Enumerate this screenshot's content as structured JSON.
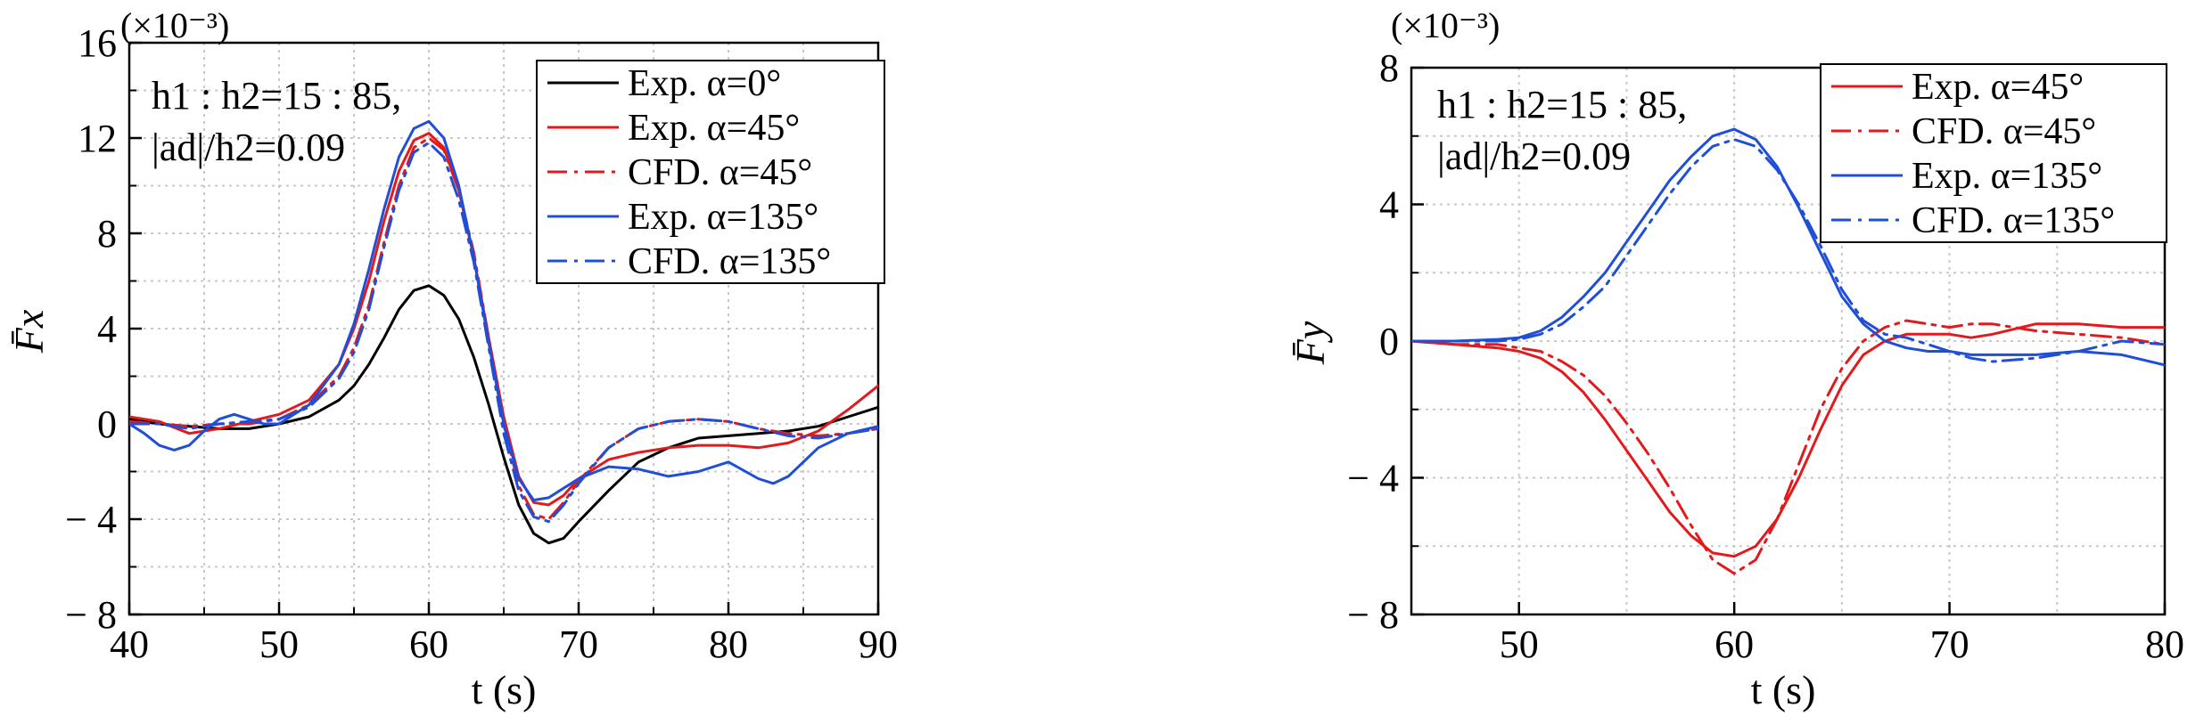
{
  "chart_data": [
    {
      "type": "line",
      "scale_label": "(×10⁻³)",
      "ylabel": "F̄x",
      "xlabel": "t (s)",
      "xlim": [
        40,
        90
      ],
      "ylim": [
        -8,
        16
      ],
      "xticks": [
        40,
        50,
        60,
        70,
        80,
        90
      ],
      "yticks": [
        -8,
        -4,
        0,
        4,
        8,
        12,
        16
      ],
      "ytick_labels": [
        "− 8",
        "− 4",
        "0",
        "4",
        "8",
        "12",
        "16"
      ],
      "grid": true,
      "legend_position": "top-right",
      "annotation": [
        "h1 : h2=15 : 85,",
        "|ad|/h2=0.09"
      ],
      "series": [
        {
          "name": "Exp. α=0°",
          "color": "#000000",
          "dash": "solid",
          "x": [
            40,
            42,
            44,
            46,
            48,
            50,
            52,
            54,
            55,
            56,
            57,
            58,
            59,
            60,
            61,
            62,
            63,
            64,
            65,
            66,
            67,
            68,
            69,
            70,
            72,
            74,
            76,
            78,
            80,
            82,
            84,
            86,
            88,
            90
          ],
          "y": [
            0.2,
            0,
            -0.1,
            -0.2,
            -0.2,
            0,
            0.3,
            1.0,
            1.6,
            2.5,
            3.6,
            4.8,
            5.6,
            5.8,
            5.4,
            4.4,
            2.8,
            0.8,
            -1.4,
            -3.4,
            -4.6,
            -5.0,
            -4.8,
            -4.1,
            -2.8,
            -1.6,
            -1.0,
            -0.6,
            -0.5,
            -0.4,
            -0.3,
            -0.1,
            0.3,
            0.7
          ]
        },
        {
          "name": "Exp. α=45°",
          "color": "#e31a1c",
          "dash": "solid",
          "x": [
            40,
            42,
            44,
            46,
            48,
            50,
            52,
            54,
            55,
            56,
            57,
            58,
            59,
            60,
            61,
            62,
            63,
            64,
            65,
            66,
            67,
            68,
            69,
            70,
            72,
            74,
            76,
            78,
            80,
            82,
            84,
            86,
            88,
            90
          ],
          "y": [
            0.3,
            0.1,
            -0.4,
            -0.2,
            0.1,
            0.4,
            1.0,
            2.5,
            4.0,
            6.0,
            8.5,
            10.6,
            11.9,
            12.2,
            11.6,
            9.8,
            7.0,
            3.6,
            0.3,
            -2.2,
            -3.3,
            -3.4,
            -3.0,
            -2.3,
            -1.5,
            -1.2,
            -1.0,
            -0.9,
            -0.9,
            -1.0,
            -0.8,
            -0.3,
            0.6,
            1.6
          ]
        },
        {
          "name": "CFD. α=45°",
          "color": "#e31a1c",
          "dash": "dashdot",
          "x": [
            40,
            42,
            44,
            46,
            48,
            50,
            52,
            54,
            55,
            56,
            57,
            58,
            59,
            60,
            61,
            62,
            63,
            64,
            65,
            66,
            67,
            68,
            69,
            70,
            72,
            74,
            76,
            78,
            80,
            82,
            84,
            86,
            88,
            90
          ],
          "y": [
            0.1,
            0,
            -0.1,
            0,
            0,
            0.2,
            0.8,
            2.0,
            3.2,
            5.0,
            7.6,
            10.0,
            11.6,
            12.0,
            11.5,
            9.8,
            7.2,
            3.6,
            0,
            -2.6,
            -3.8,
            -4.0,
            -3.3,
            -2.4,
            -1.0,
            -0.2,
            0.1,
            0.2,
            0.1,
            -0.2,
            -0.4,
            -0.5,
            -0.4,
            -0.2
          ]
        },
        {
          "name": "Exp. α=135°",
          "color": "#1f4fd8",
          "dash": "solid",
          "x": [
            40,
            41,
            42,
            43,
            44,
            45,
            46,
            47,
            48,
            49,
            50,
            52,
            54,
            55,
            56,
            57,
            58,
            59,
            60,
            61,
            62,
            63,
            64,
            65,
            66,
            67,
            68,
            69,
            70,
            72,
            74,
            76,
            78,
            80,
            82,
            83,
            84,
            86,
            88,
            90
          ],
          "y": [
            0,
            -0.4,
            -0.9,
            -1.1,
            -0.9,
            -0.3,
            0.2,
            0.4,
            0.2,
            0,
            0,
            0.8,
            2.5,
            4.2,
            6.5,
            9.0,
            11.2,
            12.4,
            12.7,
            12.0,
            10.0,
            7.0,
            3.4,
            0,
            -2.3,
            -3.2,
            -3.1,
            -2.7,
            -2.3,
            -1.8,
            -1.9,
            -2.2,
            -2.0,
            -1.6,
            -2.3,
            -2.5,
            -2.2,
            -1.0,
            -0.4,
            -0.1
          ]
        },
        {
          "name": "CFD. α=135°",
          "color": "#1f4fd8",
          "dash": "dashdot",
          "x": [
            40,
            42,
            44,
            46,
            48,
            50,
            52,
            54,
            55,
            56,
            57,
            58,
            59,
            60,
            61,
            62,
            63,
            64,
            65,
            66,
            67,
            68,
            69,
            70,
            72,
            74,
            76,
            78,
            80,
            82,
            84,
            86,
            88,
            90
          ],
          "y": [
            0,
            0,
            -0.2,
            0,
            0.1,
            0.2,
            0.7,
            1.9,
            3.0,
            4.8,
            7.4,
            9.8,
            11.4,
            11.8,
            11.2,
            9.4,
            6.8,
            3.2,
            -0.4,
            -2.8,
            -3.9,
            -4.1,
            -3.4,
            -2.5,
            -1.0,
            -0.2,
            0.1,
            0.2,
            0.1,
            -0.2,
            -0.5,
            -0.6,
            -0.4,
            -0.2
          ]
        }
      ]
    },
    {
      "type": "line",
      "scale_label": "(×10⁻³)",
      "ylabel": "F̄y",
      "xlabel": "t (s)",
      "xlim": [
        45,
        80
      ],
      "ylim": [
        -8,
        8
      ],
      "xticks": [
        50,
        60,
        70,
        80
      ],
      "yticks": [
        -8,
        -4,
        0,
        4,
        8
      ],
      "ytick_labels": [
        "− 8",
        "− 4",
        "0",
        "4",
        "8"
      ],
      "grid": true,
      "legend_position": "top-right",
      "annotation": [
        "h1 : h2=15 : 85,",
        "|ad|/h2=0.09"
      ],
      "series": [
        {
          "name": "Exp. α=45°",
          "color": "#e31a1c",
          "dash": "solid",
          "x": [
            45,
            47,
            49,
            50,
            51,
            52,
            53,
            54,
            55,
            56,
            57,
            58,
            59,
            60,
            61,
            62,
            63,
            64,
            65,
            66,
            67,
            68,
            69,
            70,
            71,
            72,
            74,
            76,
            78,
            80
          ],
          "y": [
            0,
            -0.1,
            -0.2,
            -0.3,
            -0.5,
            -0.9,
            -1.5,
            -2.3,
            -3.2,
            -4.1,
            -5.0,
            -5.7,
            -6.2,
            -6.3,
            -6.0,
            -5.2,
            -4.0,
            -2.6,
            -1.3,
            -0.4,
            0,
            0.2,
            0.2,
            0.2,
            0.1,
            0.2,
            0.5,
            0.5,
            0.4,
            0.4
          ]
        },
        {
          "name": "CFD. α=45°",
          "color": "#e31a1c",
          "dash": "dashdot",
          "x": [
            45,
            47,
            49,
            50,
            51,
            52,
            53,
            54,
            55,
            56,
            57,
            58,
            59,
            60,
            61,
            62,
            63,
            64,
            65,
            66,
            67,
            68,
            69,
            70,
            71,
            72,
            74,
            76,
            78,
            80
          ],
          "y": [
            0,
            -0.1,
            -0.1,
            -0.2,
            -0.3,
            -0.6,
            -1.0,
            -1.6,
            -2.4,
            -3.3,
            -4.3,
            -5.4,
            -6.4,
            -6.8,
            -6.4,
            -5.2,
            -3.6,
            -2.0,
            -0.8,
            0,
            0.4,
            0.6,
            0.5,
            0.4,
            0.5,
            0.5,
            0.3,
            0.2,
            0.1,
            -0.1
          ]
        },
        {
          "name": "Exp. α=135°",
          "color": "#1f4fd8",
          "dash": "solid",
          "x": [
            45,
            47,
            49,
            50,
            51,
            52,
            53,
            54,
            55,
            56,
            57,
            58,
            59,
            60,
            61,
            62,
            63,
            64,
            65,
            66,
            67,
            68,
            69,
            70,
            71,
            72,
            74,
            76,
            78,
            80
          ],
          "y": [
            0,
            0,
            0.05,
            0.1,
            0.3,
            0.7,
            1.3,
            2.0,
            2.9,
            3.8,
            4.7,
            5.4,
            6.0,
            6.2,
            5.9,
            5.1,
            3.9,
            2.6,
            1.3,
            0.5,
            0,
            -0.2,
            -0.3,
            -0.3,
            -0.4,
            -0.4,
            -0.4,
            -0.3,
            -0.4,
            -0.7
          ]
        },
        {
          "name": "CFD. α=135°",
          "color": "#1f4fd8",
          "dash": "dashdot",
          "x": [
            45,
            47,
            49,
            50,
            51,
            52,
            53,
            54,
            55,
            56,
            57,
            58,
            59,
            60,
            61,
            62,
            63,
            64,
            65,
            66,
            67,
            68,
            69,
            70,
            71,
            72,
            74,
            76,
            78,
            80
          ],
          "y": [
            0,
            0,
            0,
            0.05,
            0.2,
            0.5,
            1.0,
            1.6,
            2.5,
            3.4,
            4.3,
            5.1,
            5.7,
            5.9,
            5.7,
            5.0,
            4.0,
            2.8,
            1.5,
            0.6,
            0.2,
            0.1,
            -0.1,
            -0.3,
            -0.5,
            -0.6,
            -0.5,
            -0.3,
            0,
            -0.1
          ]
        }
      ]
    }
  ]
}
